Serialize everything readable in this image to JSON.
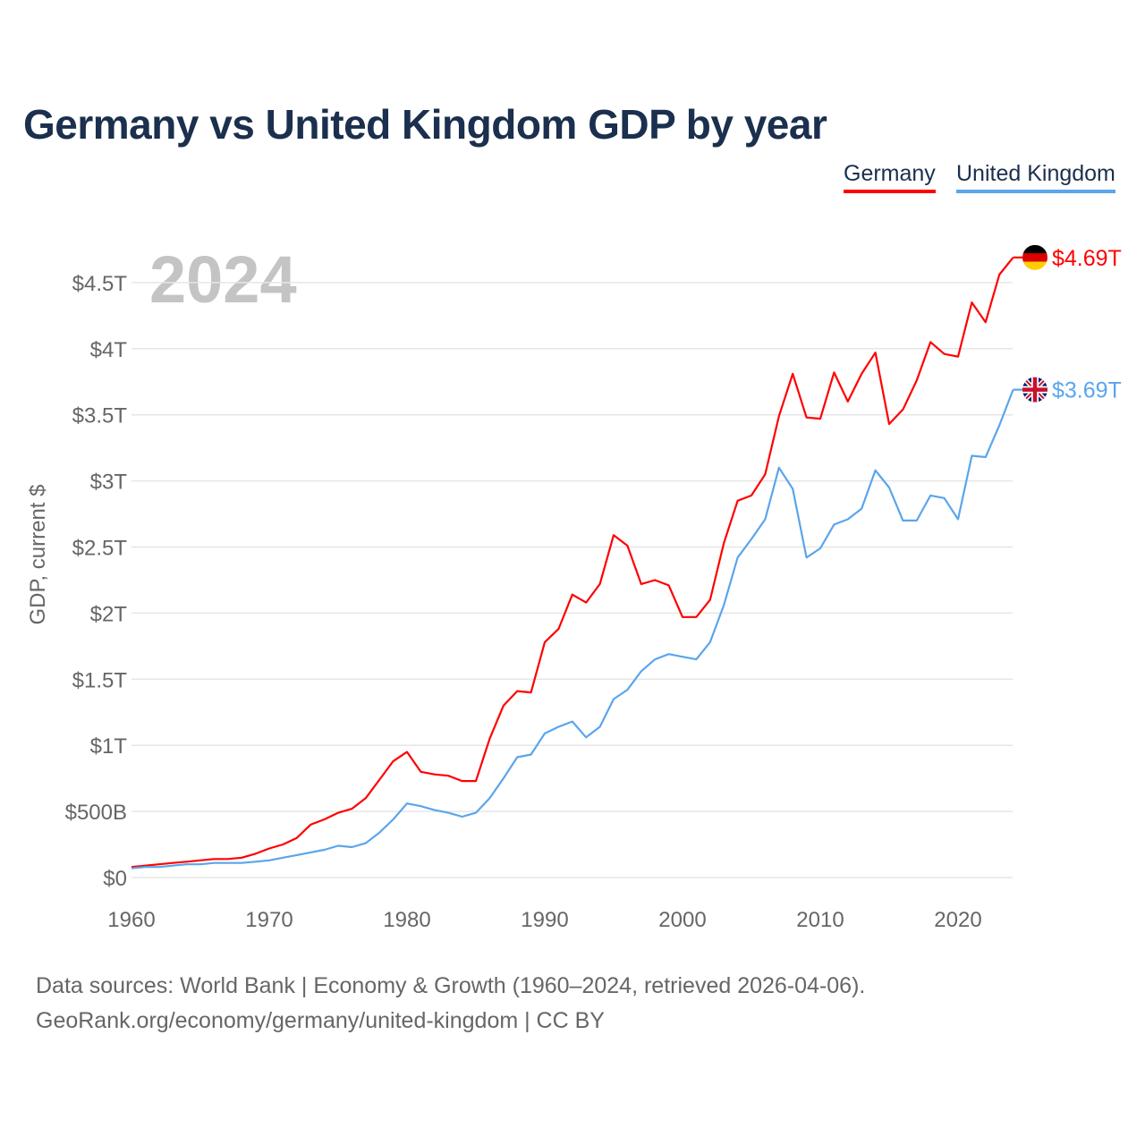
{
  "chart_data": {
    "type": "line",
    "title": "Germany vs United Kingdom GDP by year",
    "ylabel": "GDP, current $",
    "xlabel": "",
    "ylim": [
      0,
      4.75
    ],
    "xlim": [
      1960,
      2024
    ],
    "grid": true,
    "legend_position": "top-right",
    "year_watermark": "2024",
    "y_ticks": [
      {
        "value": 0,
        "label": "$0"
      },
      {
        "value": 0.5,
        "label": "$500B"
      },
      {
        "value": 1,
        "label": "$1T"
      },
      {
        "value": 1.5,
        "label": "$1.5T"
      },
      {
        "value": 2,
        "label": "$2T"
      },
      {
        "value": 2.5,
        "label": "$2.5T"
      },
      {
        "value": 3,
        "label": "$3T"
      },
      {
        "value": 3.5,
        "label": "$3.5T"
      },
      {
        "value": 4,
        "label": "$4T"
      },
      {
        "value": 4.5,
        "label": "$4.5T"
      }
    ],
    "x_ticks": [
      {
        "value": 1960,
        "label": "1960"
      },
      {
        "value": 1970,
        "label": "1970"
      },
      {
        "value": 1980,
        "label": "1980"
      },
      {
        "value": 1990,
        "label": "1990"
      },
      {
        "value": 2000,
        "label": "2000"
      },
      {
        "value": 2010,
        "label": "2010"
      },
      {
        "value": 2020,
        "label": "2020"
      }
    ],
    "x_start": 1960,
    "units": "trillion USD",
    "series": [
      {
        "name": "Germany",
        "color": "#ff0000",
        "flag": "germany-flag",
        "end_label": "$4.69T",
        "values": [
          0.08,
          0.09,
          0.1,
          0.11,
          0.12,
          0.13,
          0.14,
          0.14,
          0.15,
          0.18,
          0.22,
          0.25,
          0.3,
          0.4,
          0.44,
          0.49,
          0.52,
          0.6,
          0.74,
          0.88,
          0.95,
          0.8,
          0.78,
          0.77,
          0.73,
          0.73,
          1.05,
          1.3,
          1.41,
          1.4,
          1.78,
          1.88,
          2.14,
          2.08,
          2.22,
          2.59,
          2.51,
          2.22,
          2.25,
          2.21,
          1.97,
          1.97,
          2.1,
          2.53,
          2.85,
          2.89,
          3.05,
          3.49,
          3.81,
          3.48,
          3.47,
          3.82,
          3.6,
          3.81,
          3.97,
          3.43,
          3.54,
          3.76,
          4.05,
          3.96,
          3.94,
          4.35,
          4.2,
          4.56,
          4.69
        ]
      },
      {
        "name": "United Kingdom",
        "color": "#5aa5ec",
        "flag": "uk-flag",
        "end_label": "$3.69T",
        "values": [
          0.07,
          0.08,
          0.08,
          0.09,
          0.1,
          0.1,
          0.11,
          0.11,
          0.11,
          0.12,
          0.13,
          0.15,
          0.17,
          0.19,
          0.21,
          0.24,
          0.23,
          0.26,
          0.34,
          0.44,
          0.56,
          0.54,
          0.51,
          0.49,
          0.46,
          0.49,
          0.6,
          0.75,
          0.91,
          0.93,
          1.09,
          1.14,
          1.18,
          1.06,
          1.14,
          1.35,
          1.42,
          1.56,
          1.65,
          1.69,
          1.67,
          1.65,
          1.78,
          2.06,
          2.42,
          2.56,
          2.71,
          3.1,
          2.94,
          2.42,
          2.49,
          2.67,
          2.71,
          2.79,
          3.08,
          2.95,
          2.7,
          2.7,
          2.89,
          2.87,
          2.71,
          3.19,
          3.18,
          3.42,
          3.69
        ]
      }
    ]
  },
  "source": {
    "line1": "Data sources: World Bank | Economy & Growth (1960–2024, retrieved 2026-04-06).",
    "line2": "GeoRank.org/economy/germany/united-kingdom | CC BY"
  }
}
